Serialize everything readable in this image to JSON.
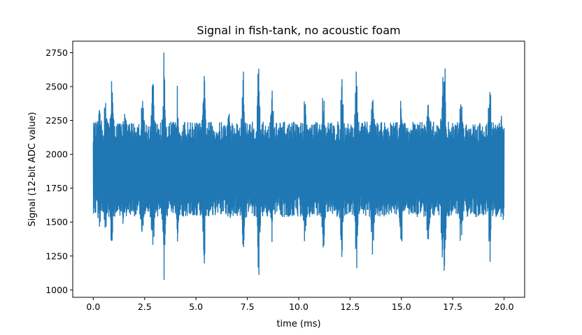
{
  "chart_data": {
    "type": "line",
    "title": "Signal in fish-tank, no acoustic foam",
    "xlabel": "time (ms)",
    "ylabel": "Signal (12-bit ADC value)",
    "xlim": [
      -1.0,
      21.0
    ],
    "ylim": [
      945,
      2835
    ],
    "xticks": [
      0.0,
      2.5,
      5.0,
      7.5,
      10.0,
      12.5,
      15.0,
      17.5,
      20.0
    ],
    "xtick_labels": [
      "0.0",
      "2.5",
      "5.0",
      "7.5",
      "10.0",
      "12.5",
      "15.0",
      "17.5",
      "20.0"
    ],
    "yticks": [
      1000,
      1250,
      1500,
      1750,
      2000,
      2250,
      2500,
      2750
    ],
    "ytick_labels": [
      "1000",
      "1250",
      "1500",
      "1750",
      "2000",
      "2250",
      "2500",
      "2750"
    ],
    "grid": false,
    "series": [
      {
        "color": "#1f77b4",
        "x_range": [
          0.0,
          20.0
        ],
        "center": 1880,
        "peaks": [
          {
            "x": 0.3,
            "max": 2330,
            "min": 1460
          },
          {
            "x": 0.6,
            "max": 2500,
            "min": 1280
          },
          {
            "x": 0.9,
            "max": 2640,
            "min": 1160
          },
          {
            "x": 1.5,
            "max": 2380,
            "min": 1400
          },
          {
            "x": 2.4,
            "max": 2490,
            "min": 1200
          },
          {
            "x": 2.9,
            "max": 2600,
            "min": 1170
          },
          {
            "x": 3.45,
            "max": 2780,
            "min": 1020
          },
          {
            "x": 4.1,
            "max": 2520,
            "min": 1260
          },
          {
            "x": 5.4,
            "max": 2590,
            "min": 1160
          },
          {
            "x": 6.6,
            "max": 2320,
            "min": 1460
          },
          {
            "x": 7.3,
            "max": 2650,
            "min": 1240
          },
          {
            "x": 8.05,
            "max": 2780,
            "min": 1020
          },
          {
            "x": 8.7,
            "max": 2500,
            "min": 1280
          },
          {
            "x": 10.3,
            "max": 2450,
            "min": 1330
          },
          {
            "x": 11.2,
            "max": 2520,
            "min": 1280
          },
          {
            "x": 12.1,
            "max": 2650,
            "min": 1160
          },
          {
            "x": 12.8,
            "max": 2630,
            "min": 1060
          },
          {
            "x": 13.6,
            "max": 2510,
            "min": 1200
          },
          {
            "x": 15.0,
            "max": 2480,
            "min": 1270
          },
          {
            "x": 16.3,
            "max": 2420,
            "min": 1310
          },
          {
            "x": 17.0,
            "max": 2620,
            "min": 1160
          },
          {
            "x": 17.1,
            "max": 2740,
            "min": 1060
          },
          {
            "x": 17.9,
            "max": 2500,
            "min": 1280
          },
          {
            "x": 19.3,
            "max": 2600,
            "min": 1160
          },
          {
            "x": 19.9,
            "max": 2320,
            "min": 1480
          }
        ],
        "base_envelope": {
          "max": 2240,
          "min": 1540
        }
      }
    ]
  }
}
